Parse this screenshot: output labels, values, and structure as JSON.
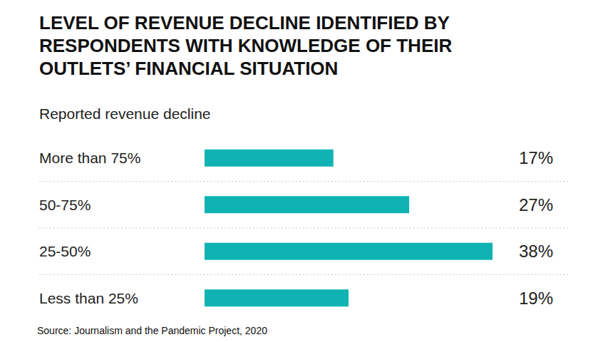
{
  "chart_data": {
    "type": "bar",
    "orientation": "horizontal",
    "title": "LEVEL OF REVENUE DECLINE IDENTIFIED BY RESPONDENTS WITH KNOWLEDGE OF THEIR OUTLETS’ FINANCIAL SITUATION",
    "subtitle": "Reported revenue decline",
    "categories": [
      "More than 75%",
      "50-75%",
      "25-50%",
      "Less than 25%"
    ],
    "values": [
      17,
      27,
      38,
      19
    ],
    "value_labels": [
      "17%",
      "27%",
      "38%",
      "19%"
    ],
    "data_labels": true,
    "tick_labels": "y",
    "color": "#10b3b3",
    "xlim": [
      0,
      38
    ],
    "source": "Source: Journalism and the Pandemic Project, 2020"
  }
}
